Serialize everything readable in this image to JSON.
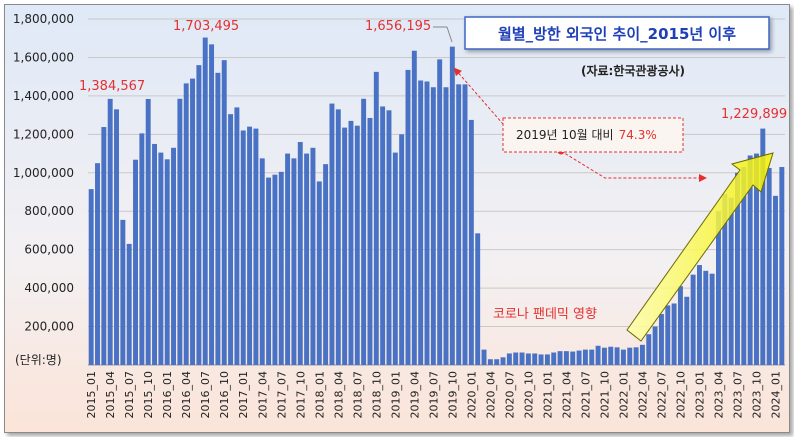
{
  "chart_data": {
    "type": "bar",
    "title": "월별_방한 외국인 추이_2015년 이후",
    "source": "(자료:한국관광공사)",
    "unit_label": "(단위:명)",
    "ylim": [
      0,
      1800000
    ],
    "yticks": [
      "200,000",
      "400,000",
      "600,000",
      "800,000",
      "1,000,000",
      "1,200,000",
      "1,400,000",
      "1,600,000",
      "1,800,000"
    ],
    "grid": true,
    "bar_color": "#4a72c4",
    "categories": [
      "2015_01",
      "2015_02",
      "2015_03",
      "2015_04",
      "2015_05",
      "2015_06",
      "2015_07",
      "2015_08",
      "2015_09",
      "2015_10",
      "2015_11",
      "2015_12",
      "2016_01",
      "2016_02",
      "2016_03",
      "2016_04",
      "2016_05",
      "2016_06",
      "2016_07",
      "2016_08",
      "2016_09",
      "2016_10",
      "2016_11",
      "2016_12",
      "2017_01",
      "2017_02",
      "2017_03",
      "2017_04",
      "2017_05",
      "2017_06",
      "2017_07",
      "2017_08",
      "2017_09",
      "2017_10",
      "2017_11",
      "2017_12",
      "2018_01",
      "2018_02",
      "2018_03",
      "2018_04",
      "2018_05",
      "2018_06",
      "2018_07",
      "2018_08",
      "2018_09",
      "2018_10",
      "2018_11",
      "2018_12",
      "2019_01",
      "2019_02",
      "2019_03",
      "2019_04",
      "2019_05",
      "2019_06",
      "2019_07",
      "2019_08",
      "2019_09",
      "2019_10",
      "2019_11",
      "2019_12",
      "2020_01",
      "2020_02",
      "2020_03",
      "2020_04",
      "2020_05",
      "2020_06",
      "2020_07",
      "2020_08",
      "2020_09",
      "2020_10",
      "2020_11",
      "2020_12",
      "2021_01",
      "2021_02",
      "2021_03",
      "2021_04",
      "2021_05",
      "2021_06",
      "2021_07",
      "2021_08",
      "2021_09",
      "2021_10",
      "2021_11",
      "2021_12",
      "2022_01",
      "2022_02",
      "2022_03",
      "2022_04",
      "2022_05",
      "2022_06",
      "2022_07",
      "2022_08",
      "2022_09",
      "2022_10",
      "2022_11",
      "2022_12",
      "2023_01",
      "2023_02",
      "2023_03",
      "2023_04",
      "2023_05",
      "2023_06",
      "2023_07",
      "2023_08",
      "2023_09",
      "2023_10",
      "2023_11",
      "2023_12",
      "2024_01",
      "2024_02"
    ],
    "values": [
      915000,
      1050000,
      1238000,
      1384567,
      1330000,
      755000,
      630000,
      1068000,
      1205000,
      1384000,
      1150000,
      1105000,
      1070000,
      1130000,
      1385000,
      1465000,
      1490000,
      1560000,
      1703495,
      1668000,
      1520000,
      1586000,
      1305000,
      1340000,
      1220000,
      1240000,
      1230000,
      1075000,
      975000,
      990000,
      1005000,
      1100000,
      1075000,
      1160000,
      1100000,
      1130000,
      955000,
      1045000,
      1360000,
      1330000,
      1235000,
      1270000,
      1245000,
      1385000,
      1285000,
      1525000,
      1345000,
      1325000,
      1105000,
      1200000,
      1535000,
      1635000,
      1480000,
      1475000,
      1445000,
      1590000,
      1445000,
      1656195,
      1460000,
      1460000,
      1275000,
      685000,
      80000,
      30000,
      30000,
      40000,
      60000,
      65000,
      65000,
      60000,
      60000,
      55000,
      55000,
      65000,
      72000,
      72000,
      70000,
      75000,
      80000,
      80000,
      100000,
      90000,
      95000,
      92000,
      80000,
      90000,
      92000,
      105000,
      160000,
      200000,
      265000,
      310000,
      320000,
      410000,
      355000,
      470000,
      520000,
      490000,
      475000,
      800000,
      890000,
      870000,
      1000000,
      1030000,
      1090000,
      1100000,
      1229899,
      1025000,
      880000,
      1030000
    ],
    "xtick_labels": [
      "2015_01",
      "2015_04",
      "2015_07",
      "2015_10",
      "2016_01",
      "2016_04",
      "2016_07",
      "2016_10",
      "2017_01",
      "2017_04",
      "2017_07",
      "2017_10",
      "2018_01",
      "2018_04",
      "2018_07",
      "2018_10",
      "2019_01",
      "2019_04",
      "2019_07",
      "2019_10",
      "2020_01",
      "2020_04",
      "2020_07",
      "2020_10",
      "2021_01",
      "2021_04",
      "2021_07",
      "2021_10",
      "2022_01",
      "2022_04",
      "2022_07",
      "2022_10",
      "2023_01",
      "2023_04",
      "2023_07",
      "2023_10",
      "2024_01"
    ],
    "annotations": {
      "peak_2015": "1,384,567",
      "peak_2016": "1,703,495",
      "peak_2019": "1,656,195",
      "peak_2023": "1,229,899",
      "covid_note": "코로나 팬데믹 영향",
      "compare_prefix": "2019년 10월 대비",
      "compare_value": "74.3%"
    }
  }
}
